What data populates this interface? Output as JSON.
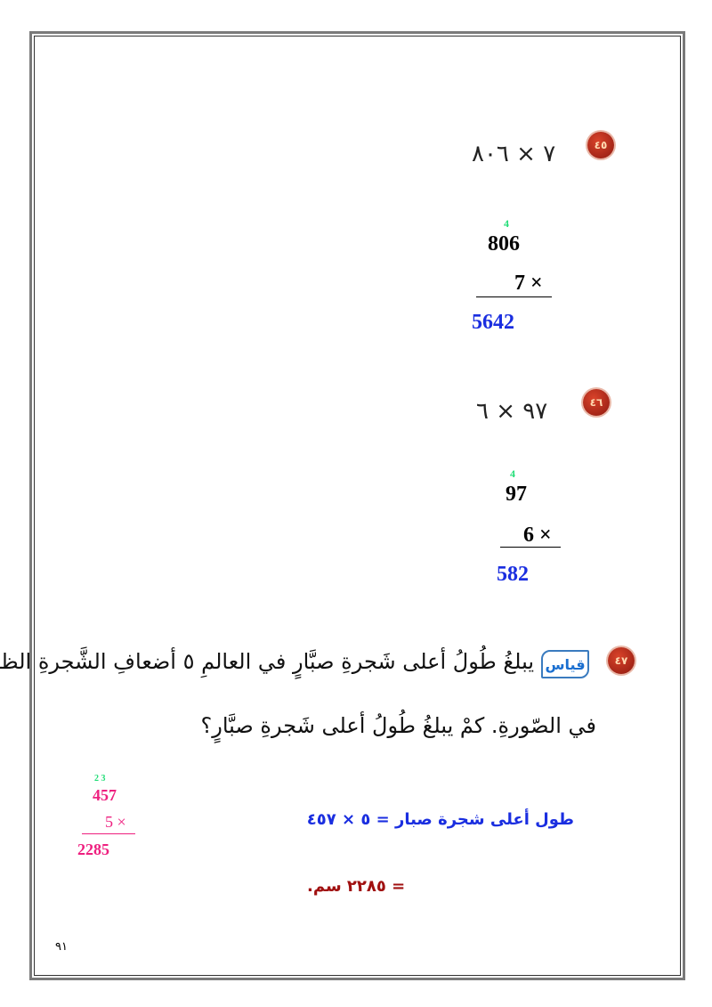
{
  "problems": [
    {
      "number": "٤٥",
      "expression": "٧ × ٨٠٦",
      "work": {
        "carry": "4",
        "top": "806",
        "multiplier": "7 ×",
        "result": "5642"
      }
    },
    {
      "number": "٤٦",
      "expression": "٩٧ × ٦",
      "work": {
        "carry": "4",
        "top": "97",
        "multiplier": "6 ×",
        "result": "582"
      }
    },
    {
      "number": "٤٧",
      "tag": "قياس",
      "text_line1": "يبلغُ طُولُ أعلى شَجرةِ صبَّارٍ في العالمِ ٥ أضعافِ الشَّجرةِ الظاهرةِ",
      "text_line2": "في الصّورةِ. كمْ يبلغُ طُولُ أعلى شَجرةِ صبَّارٍ؟",
      "work": {
        "carry": "2 3",
        "top": "457",
        "multiplier": "5 ×",
        "result": "2285"
      },
      "equation": "طول أعلى شجرة صبار = ٥ × ٤٥٧",
      "answer": "= ٢٢٨٥ سم."
    }
  ],
  "page_number": "٩١"
}
